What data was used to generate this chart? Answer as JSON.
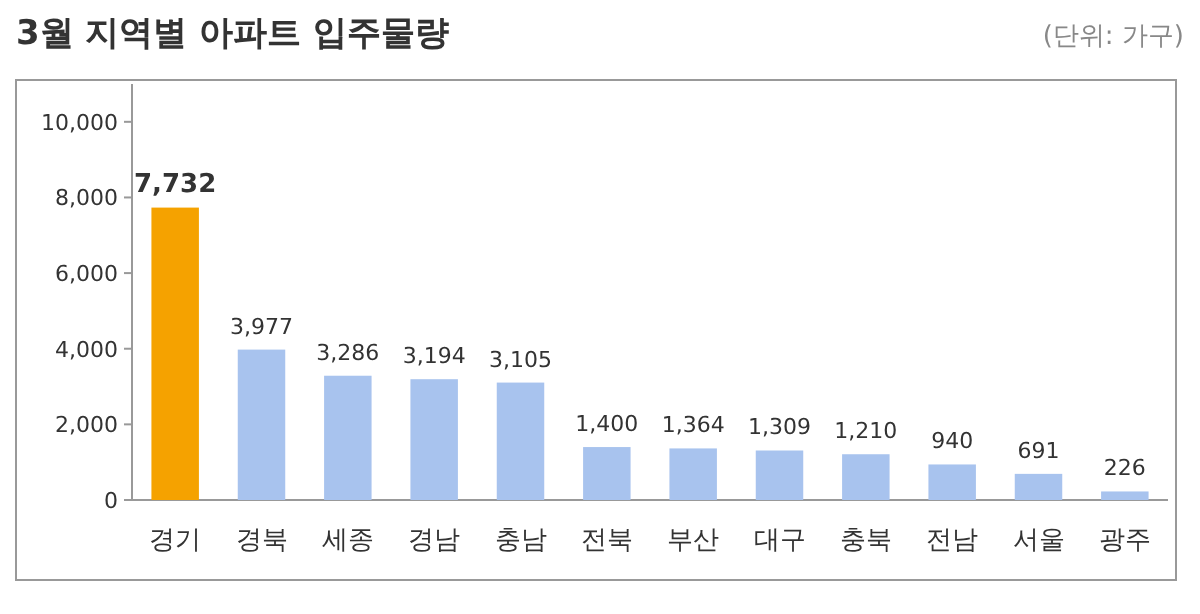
{
  "chart_data": {
    "type": "bar",
    "title": "3월 지역별 아파트 입주물량",
    "annotations": [
      "(단위: 가구)"
    ],
    "categories": [
      "경기",
      "경북",
      "세종",
      "경남",
      "충남",
      "전북",
      "부산",
      "대구",
      "충북",
      "전남",
      "서울",
      "광주"
    ],
    "values": [
      7732,
      3977,
      3286,
      3194,
      3105,
      1400,
      1364,
      1309,
      1210,
      940,
      691,
      226
    ],
    "value_labels": [
      "7,732",
      "3,977",
      "3,286",
      "3,194",
      "3,105",
      "1,400",
      "1,364",
      "1,309",
      "1,210",
      "940",
      "691",
      "226"
    ],
    "colors": [
      "#f5a200",
      "#a8c3ee",
      "#a8c3ee",
      "#a8c3ee",
      "#a8c3ee",
      "#a8c3ee",
      "#a8c3ee",
      "#a8c3ee",
      "#a8c3ee",
      "#a8c3ee",
      "#a8c3ee",
      "#a8c3ee"
    ],
    "ylim": [
      0,
      11000
    ],
    "yticks": [
      0,
      {
        "value": 2000,
        "label": "2,000"
      },
      {
        "value": 4000,
        "label": "4,000"
      },
      {
        "value": 6000,
        "label": "6,000"
      },
      {
        "value": 8000,
        "label": "8,000"
      },
      {
        "value": 10000,
        "label": "10,000"
      }
    ],
    "grid": false
  }
}
